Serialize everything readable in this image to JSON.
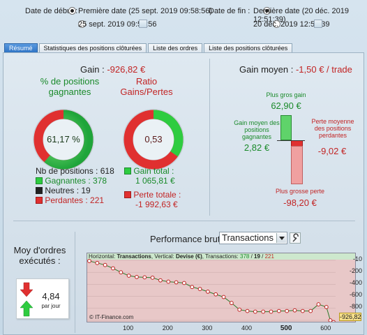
{
  "header": {
    "start_label": "Date de début :",
    "start_option1": "Première date (25 sept. 2019 09:58:56)",
    "start_option2": "25 sept. 2019 09:58:56",
    "end_label": "Date de fin :",
    "end_option1": "Dernière date (20 déc. 2019 12:51:39)",
    "end_option2": "20 déc. 2019 12:51:39"
  },
  "tabs": [
    "Résumé",
    "Statistiques des positions clôturées",
    "Liste des ordres",
    "Liste des positions clôturées"
  ],
  "summary": {
    "gain_label": "Gain :",
    "gain_value": "-926,82 €",
    "pct_title": "% de positions gagnantes",
    "pct_value": "61,17 %",
    "ratio_title": "Ratio Gains/Pertes",
    "ratio_value": "0,53",
    "nb_positions": "Nb de positions : 618",
    "gagnantes": "Gagnantes : 378",
    "neutres": "Neutres : 19",
    "perdantes": "Perdantes : 221",
    "gain_total_label": "Gain total :",
    "gain_total_value": "1 065,81 €",
    "perte_totale_label": "Perte totale :",
    "perte_totale_value": "-1 992,63 €"
  },
  "avg": {
    "gain_moyen_label": "Gain moyen :",
    "gain_moyen_value": "-1,50 € / trade",
    "plus_gros_gain_label": "Plus gros gain",
    "plus_gros_gain_value": "62,90 €",
    "gain_moyen_pos_label": "Gain moyen des positions gagnantes",
    "gain_moyen_pos_value": "2,82 €",
    "perte_moyenne_label": "Perte moyenne des positions perdantes",
    "perte_moyenne_value": "-9,02 €",
    "plus_grosse_perte_label": "Plus grosse perte",
    "plus_grosse_perte_value": "-98,20 €"
  },
  "orders": {
    "title": "Moy d'ordres exécutés :",
    "value": "4,84",
    "unit": "par jour"
  },
  "perf": {
    "title": "Performance brute",
    "select_value": "Transactions",
    "chart_header_prefix": "Horizontal: ",
    "chart_header_h": "Transactions",
    "chart_header_mid": ", Vertical: ",
    "chart_header_v": "Devise (€)",
    "chart_header_mid2": ", Transactions: ",
    "chart_header_n1": "378",
    "chart_header_sep": " / ",
    "chart_header_n2": "19",
    "chart_header_n3": "221",
    "watermark": "© IT-Finance.com",
    "current_value": "-926,82"
  },
  "colors": {
    "win": "#2ecc40",
    "loss": "#e03030",
    "neutral": "#222222",
    "accent": "#2f74c5"
  },
  "chart_data": {
    "type": "line",
    "x_ticks": [
      "100",
      "200",
      "300",
      "400",
      "500",
      "600"
    ],
    "y_ticks": [
      "-10",
      "-200",
      "-400",
      "-600",
      "-800"
    ],
    "xlim": [
      0,
      618
    ],
    "ylim": [
      -900,
      0
    ],
    "x": [
      0,
      20,
      40,
      60,
      80,
      100,
      120,
      140,
      160,
      180,
      200,
      220,
      240,
      260,
      280,
      300,
      320,
      340,
      360,
      380,
      400,
      420,
      440,
      460,
      480,
      500,
      520,
      540,
      560,
      580,
      600,
      610,
      618
    ],
    "values": [
      -10,
      -40,
      -70,
      -120,
      -180,
      -230,
      -250,
      -255,
      -260,
      -300,
      -320,
      -330,
      -340,
      -400,
      -430,
      -470,
      -510,
      -550,
      -640,
      -740,
      -760,
      -770,
      -770,
      -770,
      -760,
      -760,
      -750,
      -760,
      -760,
      -660,
      -700,
      -900,
      -926.82
    ]
  }
}
